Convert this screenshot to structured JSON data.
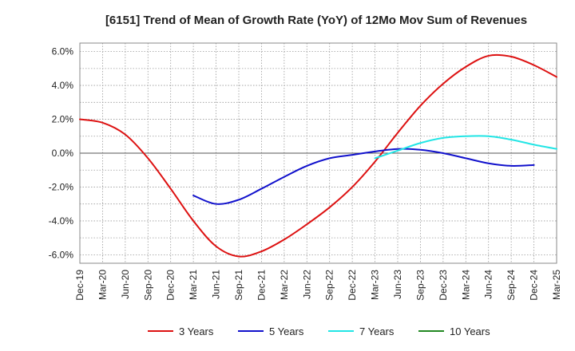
{
  "chart_data": {
    "type": "line",
    "title": "[6151]  Trend of Mean of Growth Rate (YoY) of 12Mo Mov Sum of Revenues",
    "xlabel": "",
    "ylabel": "",
    "ylim": [
      -6.5,
      6.5
    ],
    "y_ticks": [
      6.0,
      4.0,
      2.0,
      0.0,
      -2.0,
      -4.0,
      -6.0
    ],
    "y_tick_labels": [
      "6.0%",
      "4.0%",
      "2.0%",
      "0.0%",
      "-2.0%",
      "-4.0%",
      "-6.0%"
    ],
    "x_labels": [
      "Dec-19",
      "Mar-20",
      "Jun-20",
      "Sep-20",
      "Dec-20",
      "Mar-21",
      "Jun-21",
      "Sep-21",
      "Dec-21",
      "Mar-22",
      "Jun-22",
      "Sep-22",
      "Dec-22",
      "Mar-23",
      "Jun-23",
      "Sep-23",
      "Dec-23",
      "Mar-24",
      "Jun-24",
      "Sep-24",
      "Dec-24",
      "Mar-25"
    ],
    "grid": true,
    "legend_position": "bottom",
    "series": [
      {
        "name": "3 Years",
        "color": "#dd1111",
        "start_index": 0,
        "values": [
          2.0,
          1.8,
          1.1,
          -0.3,
          -2.1,
          -4.0,
          -5.5,
          -6.1,
          -5.8,
          -5.1,
          -4.2,
          -3.2,
          -2.0,
          -0.5,
          1.2,
          2.8,
          4.1,
          5.1,
          5.75,
          5.7,
          5.2,
          4.5
        ]
      },
      {
        "name": "5 Years",
        "color": "#1111cc",
        "start_index": 5,
        "values": [
          -2.5,
          -3.0,
          -2.75,
          -2.1,
          -1.4,
          -0.75,
          -0.3,
          -0.1,
          0.1,
          0.25,
          0.2,
          0.0,
          -0.3,
          -0.6,
          -0.75,
          -0.7
        ]
      },
      {
        "name": "7 Years",
        "color": "#22e5e5",
        "start_index": 13,
        "values": [
          -0.3,
          0.15,
          0.6,
          0.9,
          1.0,
          1.0,
          0.8,
          0.5,
          0.25
        ]
      },
      {
        "name": "10 Years",
        "color": "#228822",
        "start_index": 0,
        "values": []
      }
    ]
  }
}
